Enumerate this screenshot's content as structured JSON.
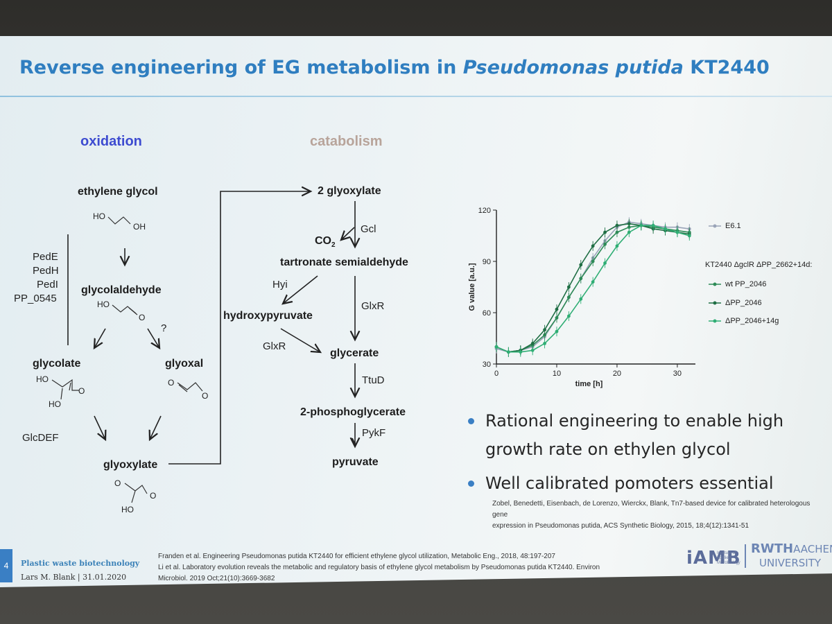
{
  "title": {
    "pre": "Reverse engineering of EG metabolism in ",
    "italic": "Pseudomonas putida",
    "post": " KT2440"
  },
  "oxidation": {
    "header": "oxidation",
    "ethylene_glycol": "ethylene glycol",
    "glycolaldehyde": "glycolaldehyde",
    "glycolate": "glycolate",
    "glyoxal": "glyoxal",
    "glyoxylate": "glyoxylate",
    "question": "?",
    "enzymes": [
      "PedE",
      "PedH",
      "PedI",
      "PP_0545"
    ],
    "glcdef": "GlcDEF",
    "ho_labels": [
      "HO",
      "OH",
      "HO",
      "O",
      "HO",
      "O",
      "HO",
      "O",
      "O",
      "O",
      "O",
      "HO"
    ]
  },
  "catabolism": {
    "header": "catabolism",
    "two_glyoxylate": "2 glyoxylate",
    "co2": "CO",
    "co2_sub": "2",
    "gcl": "Gcl",
    "tartronate": "tartronate semialdehyde",
    "hyi": "Hyi",
    "hydroxypyruvate": "hydroxypyruvate",
    "glxr1": "GlxR",
    "glxr2": "GlxR",
    "glycerate": "glycerate",
    "ttud": "TtuD",
    "phosphoglycerate": "2-phosphoglycerate",
    "pykf": "PykF",
    "pyruvate": "pyruvate"
  },
  "chart_data": {
    "type": "line",
    "xlabel": "time [h]",
    "ylabel": "G value [a.u.]",
    "xlim": [
      0,
      33
    ],
    "ylim": [
      30,
      120
    ],
    "xticks": [
      "0",
      "10",
      "20",
      "30"
    ],
    "yticks": [
      "30",
      "60",
      "90",
      "120"
    ],
    "legend_group_label": "KT2440 ΔgclR ΔPP_2662+14d:",
    "series": [
      {
        "name": "E6.1",
        "color": "#9aa4b8",
        "x": [
          0,
          2,
          4,
          6,
          8,
          10,
          12,
          14,
          16,
          18,
          20,
          22,
          24,
          26,
          28,
          30,
          32
        ],
        "y": [
          39,
          37,
          38,
          40,
          46,
          57,
          69,
          80,
          92,
          102,
          110,
          113,
          112,
          111,
          110,
          110,
          109
        ]
      },
      {
        "name": "wt PP_2046",
        "color": "#2e8b57",
        "x": [
          0,
          2,
          4,
          6,
          8,
          10,
          12,
          14,
          16,
          18,
          20,
          22,
          24,
          26,
          28,
          30,
          32
        ],
        "y": [
          40,
          37,
          38,
          41,
          47,
          57,
          69,
          80,
          90,
          100,
          107,
          110,
          111,
          110,
          109,
          108,
          107
        ]
      },
      {
        "name": "ΔPP_2046",
        "color": "#1f6e44",
        "x": [
          0,
          2,
          4,
          6,
          8,
          10,
          12,
          14,
          16,
          18,
          20,
          22,
          24,
          26,
          28,
          30,
          32
        ],
        "y": [
          40,
          37,
          38,
          42,
          50,
          62,
          75,
          88,
          99,
          107,
          111,
          112,
          111,
          109,
          108,
          107,
          106
        ]
      },
      {
        "name": "ΔPP_2046+14g",
        "color": "#2fae74",
        "x": [
          0,
          2,
          4,
          6,
          8,
          10,
          12,
          14,
          16,
          18,
          20,
          22,
          24,
          26,
          28,
          30,
          32
        ],
        "y": [
          40,
          37,
          37,
          38,
          42,
          49,
          58,
          68,
          78,
          89,
          99,
          107,
          111,
          111,
          109,
          107,
          105
        ]
      }
    ]
  },
  "bullets": [
    "Rational engineering to enable high",
    "growth rate on ethylen glycol",
    "Well calibrated pomoters essential"
  ],
  "ref_right": [
    "Zobel, Benedetti, Eisenbach, de Lorenzo, Wierckx, Blank, Tn7-based device for calibrated heterologous gene",
    "expression in Pseudomonas putida, ACS Synthetic Biology, 2015, 18;4(12):1341-51"
  ],
  "ref_bottom": [
    "Franden et al. Engineering Pseudomonas putida KT2440 for efficient ethylene glycol utilization, Metabolic Eng., 2018, 48:197-207",
    "Li et al. Laboratory evolution reveals the metabolic and regulatory basis of ethylene glycol metabolism by Pseudomonas putida KT2440.  Environ",
    "Microbiol. 2019 Oct;21(10):3669-3682"
  ],
  "footer": {
    "course": "Plastic waste biotechnology",
    "author": "Lars M. Blank | 31.01.2020",
    "page": "4"
  },
  "logos": {
    "iamb": "iAMB",
    "iamb_sub": "Institute of Applied Microbiology",
    "rwth1": "RWTH",
    "rwth2": "AACHEN",
    "rwth3": "UNIVERSITY"
  }
}
